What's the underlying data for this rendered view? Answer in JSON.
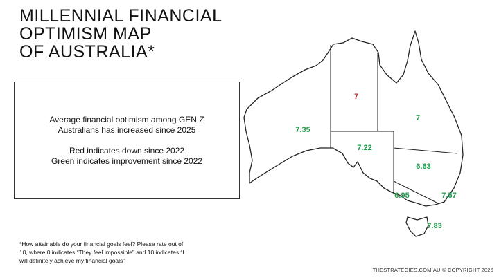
{
  "title": [
    "MILLENNIAL FINANCIAL",
    "OPTIMISM MAP",
    "OF AUSTRALIA*"
  ],
  "info_box": {
    "paragraphs": [
      [
        "Average financial optimism among GEN Z",
        "Australians has increased since 2025"
      ],
      [
        "Red indicates down since 2022",
        "Green indicates improvement since 2022"
      ]
    ]
  },
  "regions": [
    {
      "value": 7.35,
      "color": "#1f9a4a"
    },
    {
      "value": 7,
      "color": "#c0262b"
    },
    {
      "value": 7,
      "color": "#1f9a4a"
    },
    {
      "value": 7.22,
      "color": "#1f9a4a"
    },
    {
      "value": 6.63,
      "color": "#1f9a4a"
    },
    {
      "value": 6.95,
      "color": "#1f9a4a"
    },
    {
      "value": 7.57,
      "color": "#1f9a4a"
    },
    {
      "value": 7.83,
      "color": "#1f9a4a"
    }
  ],
  "footnote": [
    "*How attainable do your financial goals feel? Please rate out of",
    "10, where 0 indicates “They feel impossible” and 10 indicates “I",
    "will definitely achieve my financial goals”"
  ],
  "copyright": "THESTRATEGIES.COM.AU © COPYRIGHT 2026"
}
